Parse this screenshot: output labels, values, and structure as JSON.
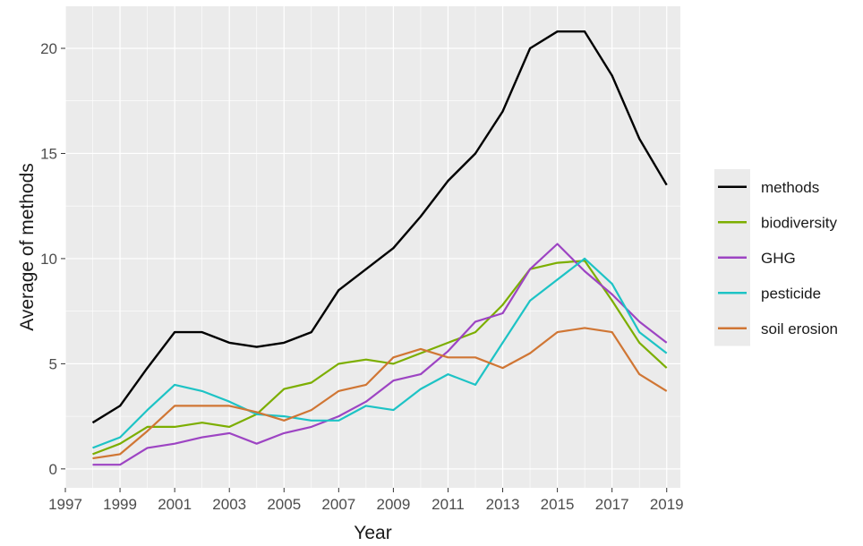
{
  "chart_data": {
    "type": "line",
    "xlabel": "Year",
    "ylabel": "Average of methods",
    "xlim": [
      1997,
      2019
    ],
    "ylim": [
      0,
      21
    ],
    "x_ticks": [
      1997,
      1999,
      2001,
      2003,
      2005,
      2007,
      2009,
      2011,
      2013,
      2015,
      2017,
      2019
    ],
    "y_ticks": [
      0,
      5,
      10,
      15,
      20
    ],
    "grid": true,
    "legend_position": "right",
    "x": [
      1998,
      1999,
      2000,
      2001,
      2002,
      2003,
      2004,
      2005,
      2006,
      2007,
      2008,
      2009,
      2010,
      2011,
      2012,
      2013,
      2014,
      2015,
      2016,
      2017,
      2018,
      2019
    ],
    "series": [
      {
        "name": "methods",
        "color": "#000000",
        "values": [
          2.2,
          3.0,
          4.8,
          6.5,
          6.5,
          6.0,
          5.8,
          6.0,
          6.5,
          8.5,
          9.5,
          10.5,
          12.0,
          13.7,
          15.0,
          17.0,
          20.0,
          20.8,
          20.8,
          18.7,
          15.7,
          13.5
        ]
      },
      {
        "name": "biodiversity",
        "color": "#7cae00",
        "values": [
          0.7,
          1.2,
          2.0,
          2.0,
          2.2,
          2.0,
          2.6,
          3.8,
          4.1,
          5.0,
          5.2,
          5.0,
          5.5,
          6.0,
          6.5,
          7.8,
          9.5,
          9.8,
          9.9,
          8.0,
          6.0,
          4.8
        ]
      },
      {
        "name": "GHG",
        "color": "#9d44c3",
        "values": [
          0.2,
          0.2,
          1.0,
          1.2,
          1.5,
          1.7,
          1.2,
          1.7,
          2.0,
          2.5,
          3.2,
          4.2,
          4.5,
          5.6,
          7.0,
          7.4,
          9.5,
          10.7,
          9.4,
          8.3,
          7.0,
          6.0
        ]
      },
      {
        "name": "pesticide",
        "color": "#1dc3c5",
        "values": [
          1.0,
          1.5,
          2.8,
          4.0,
          3.7,
          3.2,
          2.6,
          2.5,
          2.3,
          2.3,
          3.0,
          2.8,
          3.8,
          4.5,
          4.0,
          6.0,
          8.0,
          9.0,
          10.0,
          8.8,
          6.5,
          5.5
        ]
      },
      {
        "name": "soil erosion",
        "color": "#d07634",
        "values": [
          0.5,
          0.7,
          1.8,
          3.0,
          3.0,
          3.0,
          2.7,
          2.3,
          2.8,
          3.7,
          4.0,
          5.3,
          5.7,
          5.3,
          5.3,
          4.8,
          5.5,
          6.5,
          6.7,
          6.5,
          4.5,
          3.7
        ]
      }
    ]
  }
}
